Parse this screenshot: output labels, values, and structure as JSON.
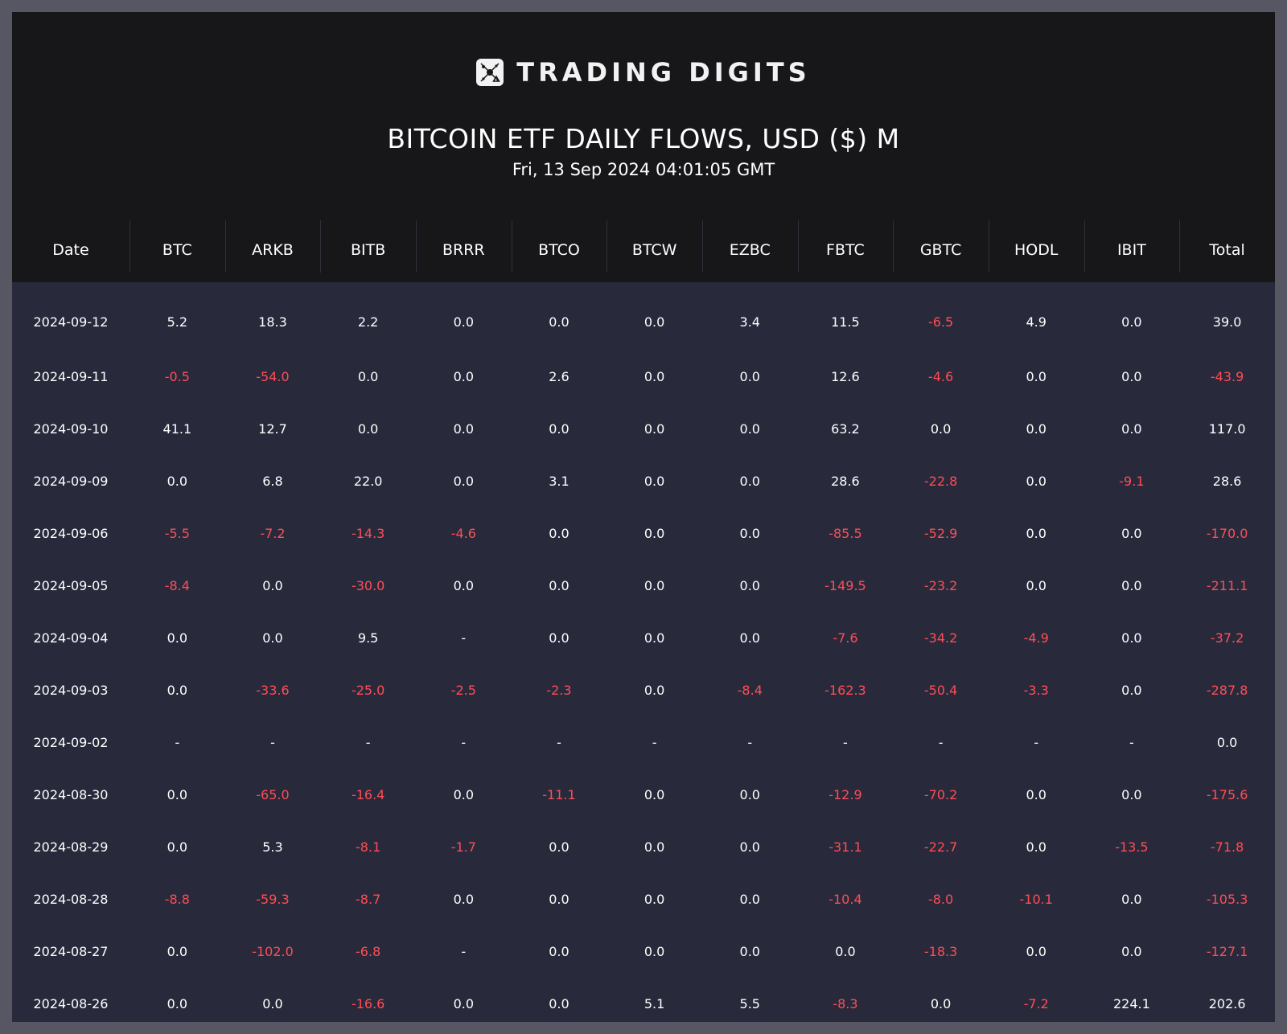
{
  "brand": {
    "name": "TRADING DIGITS",
    "logo_icon": "trading-digits-logo-icon"
  },
  "title": "BITCOIN ETF DAILY FLOWS, USD ($) M",
  "subtitle": "Fri, 13 Sep 2024 04:01:05 GMT",
  "colors": {
    "background": "#17171a",
    "table_body": "#282a3c",
    "outer_frame": "#575763",
    "positive_text": "#ffffff",
    "negative_text": "#ff4d55"
  },
  "table": {
    "columns": [
      "Date",
      "BTC",
      "ARKB",
      "BITB",
      "BRRR",
      "BTCO",
      "BTCW",
      "EZBC",
      "FBTC",
      "GBTC",
      "HODL",
      "IBIT",
      "Total"
    ],
    "rows": [
      [
        "2024-09-12",
        "5.2",
        "18.3",
        "2.2",
        "0.0",
        "0.0",
        "0.0",
        "3.4",
        "11.5",
        "-6.5",
        "4.9",
        "0.0",
        "39.0"
      ],
      [
        "2024-09-11",
        "-0.5",
        "-54.0",
        "0.0",
        "0.0",
        "2.6",
        "0.0",
        "0.0",
        "12.6",
        "-4.6",
        "0.0",
        "0.0",
        "-43.9"
      ],
      [
        "2024-09-10",
        "41.1",
        "12.7",
        "0.0",
        "0.0",
        "0.0",
        "0.0",
        "0.0",
        "63.2",
        "0.0",
        "0.0",
        "0.0",
        "117.0"
      ],
      [
        "2024-09-09",
        "0.0",
        "6.8",
        "22.0",
        "0.0",
        "3.1",
        "0.0",
        "0.0",
        "28.6",
        "-22.8",
        "0.0",
        "-9.1",
        "28.6"
      ],
      [
        "2024-09-06",
        "-5.5",
        "-7.2",
        "-14.3",
        "-4.6",
        "0.0",
        "0.0",
        "0.0",
        "-85.5",
        "-52.9",
        "0.0",
        "0.0",
        "-170.0"
      ],
      [
        "2024-09-05",
        "-8.4",
        "0.0",
        "-30.0",
        "0.0",
        "0.0",
        "0.0",
        "0.0",
        "-149.5",
        "-23.2",
        "0.0",
        "0.0",
        "-211.1"
      ],
      [
        "2024-09-04",
        "0.0",
        "0.0",
        "9.5",
        "-",
        "0.0",
        "0.0",
        "0.0",
        "-7.6",
        "-34.2",
        "-4.9",
        "0.0",
        "-37.2"
      ],
      [
        "2024-09-03",
        "0.0",
        "-33.6",
        "-25.0",
        "-2.5",
        "-2.3",
        "0.0",
        "-8.4",
        "-162.3",
        "-50.4",
        "-3.3",
        "0.0",
        "-287.8"
      ],
      [
        "2024-09-02",
        "-",
        "-",
        "-",
        "-",
        "-",
        "-",
        "-",
        "-",
        "-",
        "-",
        "-",
        "0.0"
      ],
      [
        "2024-08-30",
        "0.0",
        "-65.0",
        "-16.4",
        "0.0",
        "-11.1",
        "0.0",
        "0.0",
        "-12.9",
        "-70.2",
        "0.0",
        "0.0",
        "-175.6"
      ],
      [
        "2024-08-29",
        "0.0",
        "5.3",
        "-8.1",
        "-1.7",
        "0.0",
        "0.0",
        "0.0",
        "-31.1",
        "-22.7",
        "0.0",
        "-13.5",
        "-71.8"
      ],
      [
        "2024-08-28",
        "-8.8",
        "-59.3",
        "-8.7",
        "0.0",
        "0.0",
        "0.0",
        "0.0",
        "-10.4",
        "-8.0",
        "-10.1",
        "0.0",
        "-105.3"
      ],
      [
        "2024-08-27",
        "0.0",
        "-102.0",
        "-6.8",
        "-",
        "0.0",
        "0.0",
        "0.0",
        "0.0",
        "-18.3",
        "0.0",
        "0.0",
        "-127.1"
      ],
      [
        "2024-08-26",
        "0.0",
        "0.0",
        "-16.6",
        "0.0",
        "0.0",
        "5.1",
        "5.5",
        "-8.3",
        "0.0",
        "-7.2",
        "224.1",
        "202.6"
      ]
    ]
  }
}
